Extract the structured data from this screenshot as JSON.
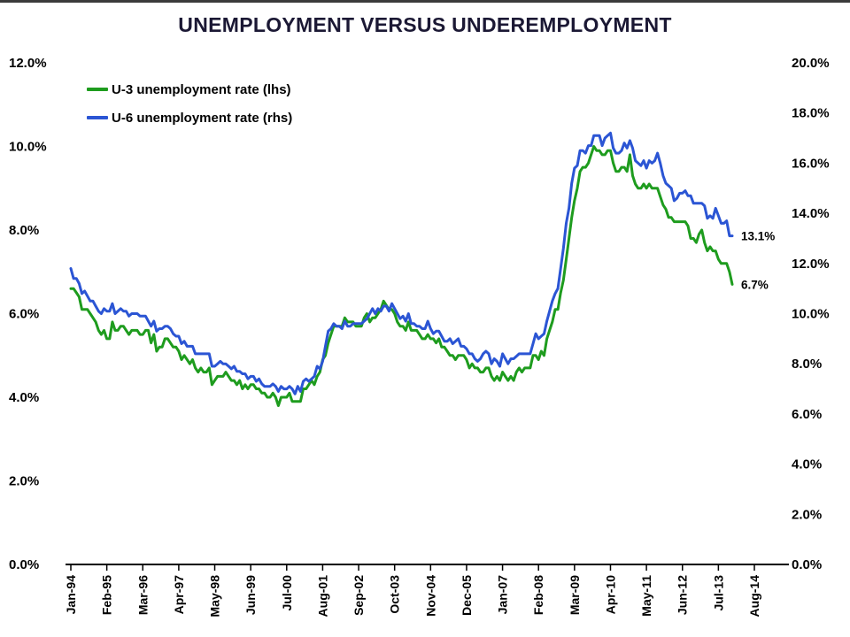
{
  "chart_data": {
    "type": "line",
    "title": "UNEMPLOYMENT VERSUS UNDEREMPLOYMENT",
    "grid": false,
    "legend_position": "top-left-inside",
    "x": {
      "unit": "month",
      "start": "Jan-94",
      "end": "Aug-14",
      "tick_interval_months": 13,
      "tick_labels": [
        "Jan-94",
        "Feb-95",
        "Mar-96",
        "Apr-97",
        "May-98",
        "Jun-99",
        "Jul-00",
        "Aug-01",
        "Sep-02",
        "Oct-03",
        "Nov-04",
        "Dec-05",
        "Jan-07",
        "Feb-08",
        "Mar-09",
        "Apr-10",
        "May-11",
        "Jun-12",
        "Jul-13",
        "Aug-14"
      ]
    },
    "left_axis": {
      "min": 0,
      "max": 12,
      "step": 2,
      "tick_labels": [
        "12.0%",
        "10.0%",
        "8.0%",
        "6.0%",
        "4.0%",
        "2.0%",
        "0.0%"
      ]
    },
    "right_axis": {
      "min": 0,
      "max": 20,
      "step": 2,
      "tick_labels": [
        "20.0%",
        "18.0%",
        "16.0%",
        "14.0%",
        "12.0%",
        "10.0%",
        "8.0%",
        "6.0%",
        "4.0%",
        "2.0%",
        "0.0%"
      ]
    },
    "series": [
      {
        "name": "U-3 unemployment rate (lhs)",
        "axis": "left",
        "color": "#1E9C1E",
        "values": [
          6.6,
          6.6,
          6.5,
          6.4,
          6.1,
          6.1,
          6.1,
          6.0,
          5.9,
          5.8,
          5.6,
          5.5,
          5.6,
          5.4,
          5.4,
          5.8,
          5.6,
          5.6,
          5.7,
          5.7,
          5.6,
          5.5,
          5.6,
          5.6,
          5.6,
          5.5,
          5.5,
          5.6,
          5.6,
          5.3,
          5.5,
          5.1,
          5.2,
          5.2,
          5.4,
          5.4,
          5.3,
          5.2,
          5.2,
          5.1,
          4.9,
          5.0,
          4.9,
          4.8,
          4.9,
          4.7,
          4.6,
          4.7,
          4.6,
          4.6,
          4.7,
          4.3,
          4.4,
          4.5,
          4.5,
          4.5,
          4.6,
          4.5,
          4.4,
          4.4,
          4.3,
          4.4,
          4.2,
          4.3,
          4.2,
          4.3,
          4.3,
          4.2,
          4.2,
          4.1,
          4.1,
          4.0,
          4.0,
          4.1,
          4.0,
          3.8,
          4.0,
          4.0,
          4.0,
          4.1,
          3.9,
          3.9,
          3.9,
          3.9,
          4.2,
          4.2,
          4.3,
          4.4,
          4.3,
          4.5,
          4.6,
          4.9,
          5.0,
          5.3,
          5.5,
          5.7,
          5.7,
          5.7,
          5.7,
          5.9,
          5.8,
          5.8,
          5.8,
          5.7,
          5.7,
          5.7,
          5.9,
          6.0,
          5.8,
          5.9,
          5.9,
          6.0,
          6.1,
          6.3,
          6.2,
          6.1,
          6.1,
          6.0,
          5.8,
          5.7,
          5.7,
          5.6,
          5.8,
          5.6,
          5.6,
          5.6,
          5.5,
          5.4,
          5.4,
          5.5,
          5.4,
          5.4,
          5.3,
          5.4,
          5.2,
          5.2,
          5.1,
          5.0,
          5.0,
          4.9,
          5.0,
          5.0,
          5.0,
          4.9,
          4.7,
          4.8,
          4.7,
          4.7,
          4.6,
          4.6,
          4.7,
          4.7,
          4.5,
          4.4,
          4.5,
          4.4,
          4.6,
          4.5,
          4.4,
          4.5,
          4.4,
          4.6,
          4.7,
          4.6,
          4.7,
          4.7,
          4.7,
          5.0,
          5.0,
          4.9,
          5.1,
          5.0,
          5.4,
          5.6,
          5.8,
          6.1,
          6.1,
          6.5,
          6.8,
          7.3,
          7.8,
          8.3,
          8.7,
          9.0,
          9.4,
          9.5,
          9.5,
          9.6,
          9.8,
          10.0,
          9.9,
          9.9,
          9.8,
          9.8,
          9.9,
          9.9,
          9.6,
          9.4,
          9.4,
          9.5,
          9.5,
          9.4,
          9.8,
          9.3,
          9.1,
          9.0,
          9.0,
          9.1,
          9.0,
          9.1,
          9.0,
          9.0,
          9.0,
          8.8,
          8.6,
          8.5,
          8.3,
          8.3,
          8.2,
          8.2,
          8.2,
          8.2,
          8.2,
          8.1,
          7.8,
          7.8,
          7.7,
          7.9,
          8.0,
          7.7,
          7.5,
          7.6,
          7.5,
          7.5,
          7.3,
          7.2,
          7.2,
          7.2,
          7.0,
          6.7
        ]
      },
      {
        "name": "U-6 unemployment rate (rhs)",
        "axis": "right",
        "color": "#2B55D4",
        "values": [
          11.8,
          11.4,
          11.4,
          11.2,
          10.8,
          10.9,
          10.7,
          10.5,
          10.5,
          10.3,
          10.1,
          10.0,
          10.2,
          10.1,
          10.1,
          10.4,
          10.0,
          10.1,
          10.2,
          10.1,
          10.1,
          9.9,
          10.0,
          10.0,
          10.0,
          9.9,
          9.9,
          9.9,
          9.7,
          9.5,
          9.7,
          9.3,
          9.4,
          9.4,
          9.5,
          9.5,
          9.4,
          9.2,
          9.1,
          9.1,
          8.8,
          8.9,
          8.7,
          8.7,
          8.7,
          8.4,
          8.4,
          8.4,
          8.4,
          8.4,
          8.4,
          7.9,
          7.9,
          8.0,
          8.1,
          8.0,
          8.0,
          7.9,
          7.8,
          7.9,
          7.7,
          7.7,
          7.6,
          7.6,
          7.4,
          7.5,
          7.5,
          7.3,
          7.4,
          7.2,
          7.1,
          7.1,
          7.1,
          7.2,
          7.1,
          6.9,
          7.1,
          7.0,
          7.0,
          7.1,
          7.0,
          6.8,
          7.1,
          6.9,
          7.3,
          7.4,
          7.3,
          7.4,
          7.5,
          7.9,
          7.8,
          8.1,
          8.7,
          9.3,
          9.4,
          9.6,
          9.5,
          9.5,
          9.4,
          9.7,
          9.5,
          9.5,
          9.6,
          9.6,
          9.6,
          9.6,
          9.7,
          9.8,
          10.0,
          10.2,
          10.0,
          10.2,
          10.1,
          10.3,
          10.3,
          10.1,
          10.4,
          10.2,
          10.0,
          9.8,
          9.9,
          9.7,
          10.0,
          9.6,
          9.6,
          9.5,
          9.5,
          9.4,
          9.4,
          9.7,
          9.4,
          9.2,
          9.3,
          9.3,
          9.1,
          8.9,
          8.9,
          9.0,
          8.8,
          8.9,
          9.0,
          8.7,
          8.7,
          8.6,
          8.4,
          8.4,
          8.2,
          8.1,
          8.2,
          8.4,
          8.5,
          8.4,
          8.0,
          8.2,
          8.1,
          7.9,
          8.4,
          8.2,
          8.0,
          8.2,
          8.2,
          8.3,
          8.4,
          8.4,
          8.4,
          8.4,
          8.4,
          8.8,
          9.2,
          9.0,
          9.1,
          9.2,
          9.7,
          10.1,
          10.5,
          10.8,
          11.0,
          11.8,
          12.6,
          13.6,
          14.2,
          15.2,
          15.8,
          15.9,
          16.5,
          16.5,
          16.4,
          16.7,
          16.7,
          17.1,
          17.1,
          17.1,
          16.7,
          17.0,
          17.1,
          17.2,
          16.6,
          16.4,
          16.4,
          16.5,
          16.8,
          16.6,
          16.9,
          16.6,
          16.1,
          16.0,
          15.9,
          16.1,
          15.8,
          16.1,
          16.0,
          16.1,
          16.4,
          16.0,
          15.5,
          15.2,
          15.1,
          15.0,
          14.5,
          14.6,
          14.8,
          14.8,
          14.9,
          14.7,
          14.7,
          14.4,
          14.4,
          14.4,
          14.4,
          14.3,
          13.8,
          13.9,
          13.8,
          14.2,
          13.9,
          13.6,
          13.6,
          13.7,
          13.1,
          13.1
        ]
      }
    ],
    "annotations": [
      {
        "text": "13.1%",
        "axis": "right",
        "value": 13.1
      },
      {
        "text": "6.7%",
        "axis": "left",
        "value": 6.7
      }
    ]
  }
}
